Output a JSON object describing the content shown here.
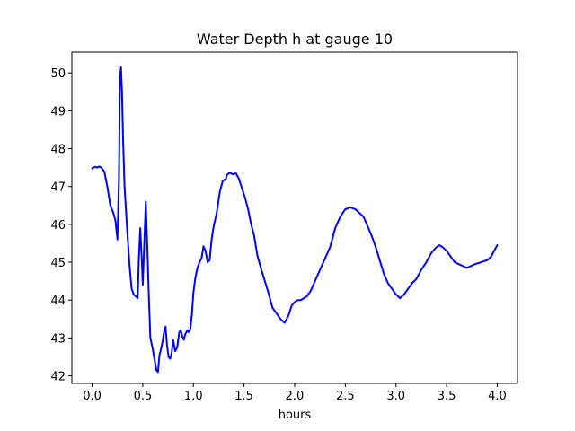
{
  "chart_data": {
    "type": "line",
    "title": "Water Depth h at gauge 10",
    "xlabel": "hours",
    "ylabel": "",
    "xlim": [
      -0.2,
      4.2
    ],
    "ylim": [
      41.8,
      50.55
    ],
    "xticks": [
      0.0,
      0.5,
      1.0,
      1.5,
      2.0,
      2.5,
      3.0,
      3.5,
      4.0
    ],
    "xtick_labels": [
      "0.0",
      "0.5",
      "1.0",
      "1.5",
      "2.0",
      "2.5",
      "3.0",
      "3.5",
      "4.0"
    ],
    "yticks": [
      42,
      43,
      44,
      45,
      46,
      47,
      48,
      49,
      50
    ],
    "ytick_labels": [
      "42",
      "43",
      "44",
      "45",
      "46",
      "47",
      "48",
      "49",
      "50"
    ],
    "grid": false,
    "series": [
      {
        "color": "#0000ff",
        "x": [
          0.0,
          0.03,
          0.05,
          0.07,
          0.09,
          0.12,
          0.15,
          0.18,
          0.21,
          0.23,
          0.25,
          0.265,
          0.275,
          0.285,
          0.295,
          0.305,
          0.32,
          0.345,
          0.37,
          0.39,
          0.41,
          0.43,
          0.45,
          0.46,
          0.475,
          0.49,
          0.5,
          0.515,
          0.53,
          0.545,
          0.56,
          0.575,
          0.595,
          0.615,
          0.635,
          0.65,
          0.665,
          0.68,
          0.695,
          0.71,
          0.725,
          0.74,
          0.755,
          0.77,
          0.785,
          0.8,
          0.82,
          0.84,
          0.86,
          0.875,
          0.89,
          0.905,
          0.92,
          0.94,
          0.955,
          0.97,
          0.985,
          1.0,
          1.02,
          1.04,
          1.06,
          1.08,
          1.1,
          1.12,
          1.14,
          1.16,
          1.18,
          1.2,
          1.23,
          1.26,
          1.29,
          1.32,
          1.33,
          1.35,
          1.37,
          1.39,
          1.42,
          1.45,
          1.48,
          1.51,
          1.54,
          1.57,
          1.6,
          1.63,
          1.66,
          1.7,
          1.74,
          1.78,
          1.82,
          1.86,
          1.9,
          1.94,
          1.97,
          2.0,
          2.03,
          2.06,
          2.09,
          2.12,
          2.16,
          2.2,
          2.25,
          2.3,
          2.35,
          2.4,
          2.45,
          2.5,
          2.55,
          2.6,
          2.64,
          2.68,
          2.72,
          2.76,
          2.8,
          2.84,
          2.88,
          2.92,
          2.96,
          3.0,
          3.04,
          3.08,
          3.12,
          3.16,
          3.2,
          3.25,
          3.3,
          3.35,
          3.4,
          3.43,
          3.46,
          3.5,
          3.54,
          3.58,
          3.62,
          3.66,
          3.7,
          3.74,
          3.78,
          3.82,
          3.86,
          3.9,
          3.94,
          3.97,
          4.0
        ],
        "y": [
          47.48,
          47.52,
          47.5,
          47.53,
          47.5,
          47.4,
          47.0,
          46.5,
          46.3,
          46.1,
          45.6,
          47.2,
          49.9,
          50.15,
          49.5,
          48.3,
          47.0,
          45.9,
          44.9,
          44.3,
          44.15,
          44.1,
          44.05,
          45.0,
          45.9,
          45.1,
          44.4,
          45.5,
          46.6,
          45.4,
          44.1,
          43.0,
          42.75,
          42.45,
          42.15,
          42.1,
          42.55,
          42.7,
          42.9,
          43.15,
          43.3,
          42.8,
          42.5,
          42.45,
          42.6,
          42.95,
          42.65,
          42.75,
          43.15,
          43.2,
          43.05,
          42.95,
          43.1,
          43.2,
          43.15,
          43.25,
          43.6,
          44.2,
          44.6,
          44.85,
          45.0,
          45.1,
          45.42,
          45.3,
          45.0,
          45.05,
          45.6,
          45.95,
          46.3,
          46.85,
          47.15,
          47.2,
          47.3,
          47.35,
          47.35,
          47.32,
          47.35,
          47.2,
          46.95,
          46.7,
          46.4,
          46.0,
          45.7,
          45.2,
          44.9,
          44.55,
          44.2,
          43.8,
          43.65,
          43.5,
          43.4,
          43.6,
          43.85,
          43.95,
          44.0,
          44.0,
          44.05,
          44.1,
          44.25,
          44.5,
          44.8,
          45.1,
          45.4,
          45.9,
          46.2,
          46.4,
          46.45,
          46.4,
          46.3,
          46.2,
          45.95,
          45.7,
          45.4,
          45.05,
          44.7,
          44.45,
          44.3,
          44.15,
          44.05,
          44.15,
          44.3,
          44.45,
          44.55,
          44.8,
          45.0,
          45.25,
          45.4,
          45.45,
          45.4,
          45.3,
          45.15,
          45.0,
          44.95,
          44.9,
          44.85,
          44.9,
          44.95,
          44.98,
          45.02,
          45.05,
          45.15,
          45.3,
          45.45
        ]
      }
    ]
  }
}
